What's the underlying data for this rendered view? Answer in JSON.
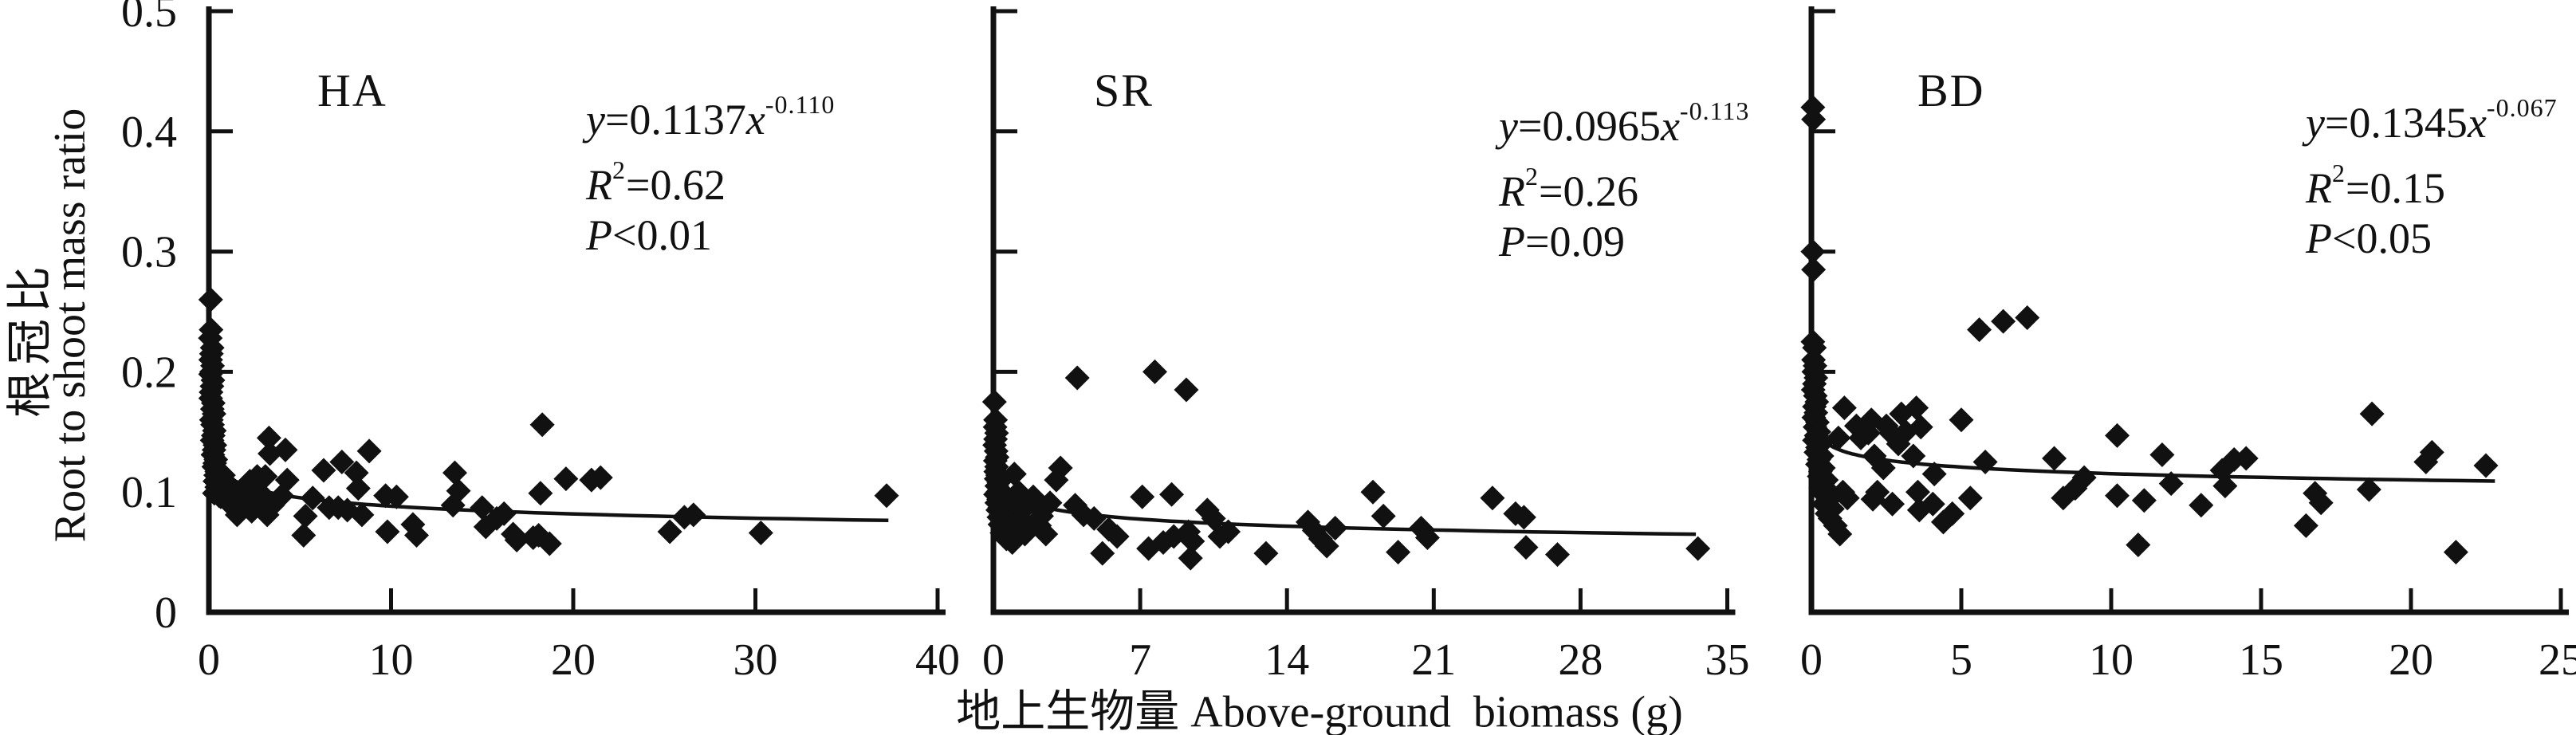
{
  "figure": {
    "ylabel_cn": "根冠比",
    "ylabel_en": "Root to shoot mass ratio",
    "xlabel": "地上生物量 Above-ground  biomass (g)",
    "ink_color": "#111111",
    "background_color": "#ffffff",
    "marker": "filled-diamond"
  },
  "chart_data": [
    {
      "type": "scatter",
      "title": "HA",
      "equation": {
        "y_var": "y",
        "body": "=0.1137",
        "x_var": "x",
        "exp": "-0.110",
        "r_var": "R",
        "r_sup": "2",
        "r_body": "=0.62",
        "p_var": "P",
        "p_body": "<0.01"
      },
      "fit": {
        "a": 0.1137,
        "b": -0.11,
        "x_start": 0.35,
        "x_end": 37.3
      },
      "xlim": [
        0,
        40
      ],
      "ylim": [
        0,
        0.5
      ],
      "xticks": [
        "0",
        "10",
        "20",
        "30",
        "40"
      ],
      "yticks": [
        "0",
        "0.1",
        "0.2",
        "0.3",
        "0.4",
        "0.5"
      ],
      "show_ytick_labels": true,
      "grid": false,
      "legend": "none",
      "points": [
        [
          0.1,
          0.26
        ],
        [
          0.12,
          0.235
        ],
        [
          0.08,
          0.228
        ],
        [
          0.18,
          0.22
        ],
        [
          0.14,
          0.215
        ],
        [
          0.1,
          0.21
        ],
        [
          0.2,
          0.205
        ],
        [
          0.15,
          0.2
        ],
        [
          0.09,
          0.198
        ],
        [
          0.22,
          0.193
        ],
        [
          0.17,
          0.188
        ],
        [
          0.12,
          0.183
        ],
        [
          0.1,
          0.178
        ],
        [
          0.24,
          0.174
        ],
        [
          0.19,
          0.169
        ],
        [
          0.28,
          0.165
        ],
        [
          0.14,
          0.16
        ],
        [
          0.2,
          0.156
        ],
        [
          0.3,
          0.151
        ],
        [
          0.24,
          0.147
        ],
        [
          0.18,
          0.143
        ],
        [
          0.33,
          0.139
        ],
        [
          0.28,
          0.135
        ],
        [
          0.22,
          0.131
        ],
        [
          0.38,
          0.127
        ],
        [
          0.32,
          0.124
        ],
        [
          0.27,
          0.121
        ],
        [
          0.43,
          0.117
        ],
        [
          0.37,
          0.114
        ],
        [
          0.48,
          0.111
        ],
        [
          0.33,
          0.109
        ],
        [
          0.53,
          0.106
        ],
        [
          0.43,
          0.104
        ],
        [
          0.58,
          0.102
        ],
        [
          0.48,
          0.1
        ],
        [
          0.3,
          0.099
        ],
        [
          0.55,
          0.097
        ],
        [
          0.65,
          0.096
        ],
        [
          0.8,
          0.114
        ],
        [
          0.9,
          0.109
        ],
        [
          1.0,
          0.105
        ],
        [
          1.15,
          0.1
        ],
        [
          0.92,
          0.096
        ],
        [
          1.25,
          0.094
        ],
        [
          1.45,
          0.091
        ],
        [
          1.35,
          0.087
        ],
        [
          1.6,
          0.084
        ],
        [
          1.55,
          0.081
        ],
        [
          1.85,
          0.1
        ],
        [
          2.05,
          0.104
        ],
        [
          2.25,
          0.109
        ],
        [
          2.15,
          0.094
        ],
        [
          2.45,
          0.089
        ],
        [
          2.35,
          0.084
        ],
        [
          2.65,
          0.113
        ],
        [
          2.85,
          0.099
        ],
        [
          3.05,
          0.094
        ],
        [
          2.95,
          0.087
        ],
        [
          3.2,
          0.081
        ],
        [
          3.35,
          0.132
        ],
        [
          3.3,
          0.145
        ],
        [
          4.2,
          0.135
        ],
        [
          3.1,
          0.113
        ],
        [
          4.3,
          0.11
        ],
        [
          3.5,
          0.089
        ],
        [
          4.0,
          0.097
        ],
        [
          5.2,
          0.064
        ],
        [
          5.3,
          0.08
        ],
        [
          5.7,
          0.095
        ],
        [
          6.3,
          0.118
        ],
        [
          6.6,
          0.087
        ],
        [
          7.1,
          0.087
        ],
        [
          7.3,
          0.125
        ],
        [
          7.6,
          0.085
        ],
        [
          8.1,
          0.116
        ],
        [
          8.2,
          0.103
        ],
        [
          8.4,
          0.081
        ],
        [
          8.8,
          0.134
        ],
        [
          9.7,
          0.097
        ],
        [
          9.8,
          0.067
        ],
        [
          10.3,
          0.096
        ],
        [
          11.2,
          0.073
        ],
        [
          11.4,
          0.064
        ],
        [
          13.4,
          0.089
        ],
        [
          13.5,
          0.116
        ],
        [
          13.7,
          0.101
        ],
        [
          15.0,
          0.087
        ],
        [
          15.2,
          0.071
        ],
        [
          15.8,
          0.078
        ],
        [
          16.2,
          0.082
        ],
        [
          16.7,
          0.065
        ],
        [
          16.9,
          0.06
        ],
        [
          17.8,
          0.062
        ],
        [
          18.1,
          0.064
        ],
        [
          18.2,
          0.099
        ],
        [
          18.3,
          0.156
        ],
        [
          18.7,
          0.057
        ],
        [
          19.6,
          0.111
        ],
        [
          21.0,
          0.11
        ],
        [
          21.5,
          0.112
        ],
        [
          25.3,
          0.067
        ],
        [
          26.1,
          0.079
        ],
        [
          26.6,
          0.081
        ],
        [
          30.3,
          0.066
        ],
        [
          37.2,
          0.097
        ]
      ]
    },
    {
      "type": "scatter",
      "title": "SR",
      "equation": {
        "y_var": "y",
        "body": "=0.0965",
        "x_var": "x",
        "exp": "-0.113",
        "r_var": "R",
        "r_sup": "2",
        "r_body": "=0.26",
        "p_var": "P",
        "p_body": "=0.09"
      },
      "fit": {
        "a": 0.0965,
        "b": -0.113,
        "x_start": 0.3,
        "x_end": 33.5
      },
      "xlim": [
        0,
        35
      ],
      "ylim": [
        0,
        0.5
      ],
      "xticks": [
        "0",
        "7",
        "14",
        "21",
        "28",
        "35"
      ],
      "yticks": [
        "0",
        "0.1",
        "0.2",
        "0.3",
        "0.4",
        "0.5"
      ],
      "show_ytick_labels": false,
      "grid": false,
      "legend": "none",
      "points": [
        [
          0.05,
          0.175
        ],
        [
          0.1,
          0.16
        ],
        [
          0.08,
          0.154
        ],
        [
          0.15,
          0.149
        ],
        [
          0.1,
          0.144
        ],
        [
          0.06,
          0.139
        ],
        [
          0.13,
          0.134
        ],
        [
          0.18,
          0.129
        ],
        [
          0.09,
          0.126
        ],
        [
          0.15,
          0.121
        ],
        [
          0.11,
          0.117
        ],
        [
          0.2,
          0.114
        ],
        [
          0.13,
          0.111
        ],
        [
          0.26,
          0.108
        ],
        [
          0.16,
          0.105
        ],
        [
          0.3,
          0.102
        ],
        [
          0.2,
          0.1
        ],
        [
          0.1,
          0.098
        ],
        [
          0.35,
          0.096
        ],
        [
          0.25,
          0.094
        ],
        [
          0.16,
          0.091
        ],
        [
          0.4,
          0.089
        ],
        [
          0.3,
          0.087
        ],
        [
          0.21,
          0.085
        ],
        [
          0.5,
          0.083
        ],
        [
          0.36,
          0.081
        ],
        [
          0.26,
          0.079
        ],
        [
          0.6,
          0.077
        ],
        [
          0.45,
          0.075
        ],
        [
          0.31,
          0.073
        ],
        [
          0.7,
          0.071
        ],
        [
          0.5,
          0.069
        ],
        [
          0.41,
          0.066
        ],
        [
          0.8,
          0.064
        ],
        [
          0.62,
          0.061
        ],
        [
          0.9,
          0.058
        ],
        [
          1.0,
          0.115
        ],
        [
          1.2,
          0.1
        ],
        [
          1.1,
          0.092
        ],
        [
          1.4,
          0.085
        ],
        [
          1.3,
          0.078
        ],
        [
          1.6,
          0.072
        ],
        [
          1.5,
          0.065
        ],
        [
          1.9,
          0.096
        ],
        [
          2.1,
          0.088
        ],
        [
          2.3,
          0.08
        ],
        [
          2.2,
          0.072
        ],
        [
          2.5,
          0.065
        ],
        [
          2.7,
          0.091
        ],
        [
          3.0,
          0.11
        ],
        [
          3.2,
          0.12
        ],
        [
          3.9,
          0.089
        ],
        [
          4.0,
          0.195
        ],
        [
          4.3,
          0.081
        ],
        [
          4.8,
          0.078
        ],
        [
          5.2,
          0.049
        ],
        [
          5.5,
          0.069
        ],
        [
          5.9,
          0.063
        ],
        [
          7.1,
          0.096
        ],
        [
          7.4,
          0.053
        ],
        [
          7.7,
          0.2
        ],
        [
          8.1,
          0.058
        ],
        [
          8.5,
          0.098
        ],
        [
          8.6,
          0.063
        ],
        [
          9.2,
          0.185
        ],
        [
          9.3,
          0.067
        ],
        [
          9.5,
          0.059
        ],
        [
          9.4,
          0.045
        ],
        [
          10.2,
          0.085
        ],
        [
          10.5,
          0.078
        ],
        [
          10.8,
          0.063
        ],
        [
          11.2,
          0.067
        ],
        [
          13.0,
          0.049
        ],
        [
          15.0,
          0.075
        ],
        [
          15.3,
          0.068
        ],
        [
          15.6,
          0.061
        ],
        [
          15.9,
          0.055
        ],
        [
          16.3,
          0.07
        ],
        [
          18.1,
          0.1
        ],
        [
          18.6,
          0.08
        ],
        [
          19.3,
          0.05
        ],
        [
          20.4,
          0.07
        ],
        [
          20.7,
          0.062
        ],
        [
          23.8,
          0.095
        ],
        [
          24.9,
          0.082
        ],
        [
          25.3,
          0.079
        ],
        [
          25.4,
          0.054
        ],
        [
          26.9,
          0.048
        ],
        [
          33.6,
          0.053
        ]
      ]
    },
    {
      "type": "scatter",
      "title": "BD",
      "equation": {
        "y_var": "y",
        "body": "=0.1345",
        "x_var": "x",
        "exp": "-0.067",
        "r_var": "R",
        "r_sup": "2",
        "r_body": "=0.15",
        "p_var": "P",
        "p_body": "<0.05"
      },
      "fit": {
        "a": 0.1345,
        "b": -0.067,
        "x_start": 0.22,
        "x_end": 22.8
      },
      "xlim": [
        0,
        25
      ],
      "ylim": [
        0,
        0.5
      ],
      "xticks": [
        "0",
        "5",
        "10",
        "15",
        "20",
        "25"
      ],
      "yticks": [
        "0",
        "0.1",
        "0.2",
        "0.3",
        "0.4",
        "0.5"
      ],
      "show_ytick_labels": false,
      "grid": false,
      "legend": "none",
      "points": [
        [
          0.05,
          0.42
        ],
        [
          0.07,
          0.41
        ],
        [
          0.05,
          0.3
        ],
        [
          0.07,
          0.285
        ],
        [
          0.05,
          0.225
        ],
        [
          0.1,
          0.22
        ],
        [
          0.07,
          0.21
        ],
        [
          0.12,
          0.205
        ],
        [
          0.08,
          0.2
        ],
        [
          0.15,
          0.195
        ],
        [
          0.1,
          0.19
        ],
        [
          0.06,
          0.185
        ],
        [
          0.13,
          0.18
        ],
        [
          0.18,
          0.175
        ],
        [
          0.1,
          0.171
        ],
        [
          0.15,
          0.166
        ],
        [
          0.08,
          0.162
        ],
        [
          0.2,
          0.158
        ],
        [
          0.12,
          0.154
        ],
        [
          0.25,
          0.15
        ],
        [
          0.16,
          0.147
        ],
        [
          0.1,
          0.143
        ],
        [
          0.3,
          0.14
        ],
        [
          0.2,
          0.137
        ],
        [
          0.15,
          0.133
        ],
        [
          0.35,
          0.13
        ],
        [
          0.25,
          0.127
        ],
        [
          0.2,
          0.123
        ],
        [
          0.4,
          0.12
        ],
        [
          0.3,
          0.117
        ],
        [
          0.26,
          0.113
        ],
        [
          0.5,
          0.11
        ],
        [
          0.36,
          0.107
        ],
        [
          0.31,
          0.103
        ],
        [
          0.6,
          0.1
        ],
        [
          0.46,
          0.097
        ],
        [
          0.56,
          0.093
        ],
        [
          0.41,
          0.09
        ],
        [
          0.7,
          0.086
        ],
        [
          0.52,
          0.082
        ],
        [
          0.62,
          0.078
        ],
        [
          0.8,
          0.072
        ],
        [
          0.95,
          0.065
        ],
        [
          0.9,
          0.145
        ],
        [
          1.1,
          0.17
        ],
        [
          1.05,
          0.1
        ],
        [
          1.2,
          0.095
        ],
        [
          1.5,
          0.155
        ],
        [
          1.65,
          0.145
        ],
        [
          2.0,
          0.16
        ],
        [
          1.9,
          0.149
        ],
        [
          2.1,
          0.13
        ],
        [
          2.2,
          0.1
        ],
        [
          2.05,
          0.094
        ],
        [
          2.5,
          0.155
        ],
        [
          2.65,
          0.149
        ],
        [
          2.4,
          0.12
        ],
        [
          2.7,
          0.09
        ],
        [
          3.0,
          0.165
        ],
        [
          3.15,
          0.15
        ],
        [
          2.9,
          0.14
        ],
        [
          3.5,
          0.17
        ],
        [
          3.65,
          0.154
        ],
        [
          3.4,
          0.13
        ],
        [
          3.55,
          0.1
        ],
        [
          3.6,
          0.085
        ],
        [
          4.1,
          0.115
        ],
        [
          4.05,
          0.09
        ],
        [
          4.4,
          0.075
        ],
        [
          4.7,
          0.082
        ],
        [
          5.3,
          0.095
        ],
        [
          5.6,
          0.235
        ],
        [
          6.4,
          0.242
        ],
        [
          7.2,
          0.245
        ],
        [
          5.0,
          0.16
        ],
        [
          5.8,
          0.125
        ],
        [
          8.1,
          0.128
        ],
        [
          8.4,
          0.095
        ],
        [
          8.8,
          0.103
        ],
        [
          9.1,
          0.112
        ],
        [
          10.2,
          0.147
        ],
        [
          10.2,
          0.097
        ],
        [
          11.1,
          0.093
        ],
        [
          10.9,
          0.056
        ],
        [
          11.7,
          0.131
        ],
        [
          12.0,
          0.107
        ],
        [
          13.0,
          0.089
        ],
        [
          13.7,
          0.118
        ],
        [
          14.1,
          0.127
        ],
        [
          13.8,
          0.105
        ],
        [
          14.5,
          0.128
        ],
        [
          16.8,
          0.099
        ],
        [
          17.0,
          0.091
        ],
        [
          16.5,
          0.072
        ],
        [
          18.7,
          0.165
        ],
        [
          18.6,
          0.102
        ],
        [
          20.7,
          0.133
        ],
        [
          20.5,
          0.125
        ],
        [
          22.5,
          0.122
        ],
        [
          21.5,
          0.05
        ]
      ]
    }
  ]
}
